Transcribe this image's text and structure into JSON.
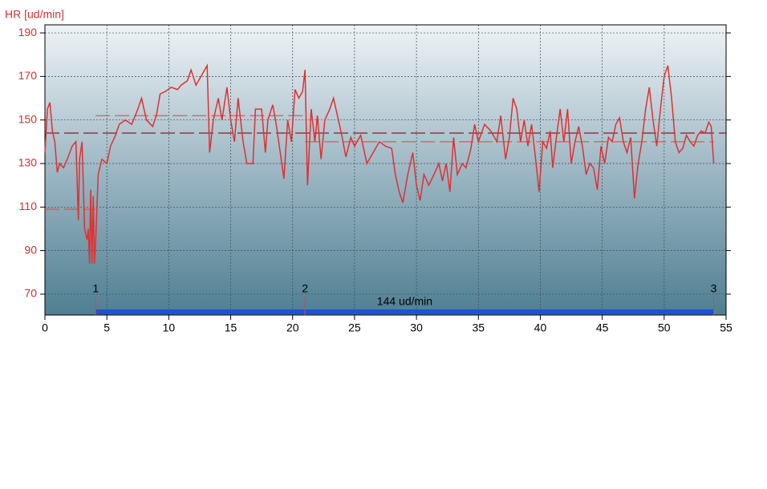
{
  "chart_data": {
    "type": "line",
    "y_label": "HR [ud/min]",
    "x": [
      0,
      0.2,
      0.4,
      0.6,
      0.8,
      1.0,
      1.2,
      1.5,
      1.8,
      2.2,
      2.5,
      2.7,
      2.8,
      3.0,
      3.2,
      3.4,
      3.5,
      3.6,
      3.7,
      3.8,
      3.9,
      4.0,
      4.1,
      4.3,
      4.6,
      5.0,
      5.3,
      5.7,
      6.0,
      6.5,
      7.0,
      7.5,
      7.8,
      8.2,
      8.7,
      9.0,
      9.3,
      9.7,
      10.2,
      10.7,
      11.0,
      11.5,
      11.8,
      12.2,
      12.8,
      13.1,
      13.3,
      13.6,
      14.0,
      14.3,
      14.7,
      15.0,
      15.3,
      15.6,
      16.0,
      16.3,
      16.8,
      17.0,
      17.5,
      17.8,
      18.0,
      18.4,
      18.7,
      19.0,
      19.3,
      19.6,
      19.9,
      20.2,
      20.5,
      20.8,
      21.0,
      21.2,
      21.5,
      21.8,
      22.0,
      22.3,
      22.6,
      23.0,
      23.3,
      23.7,
      24.0,
      24.3,
      24.7,
      25.0,
      25.5,
      26.0,
      26.5,
      27.0,
      27.5,
      28.0,
      28.3,
      28.6,
      28.9,
      29.3,
      29.7,
      30.0,
      30.3,
      30.6,
      31.0,
      31.5,
      31.8,
      32.1,
      32.4,
      32.7,
      33.0,
      33.3,
      33.7,
      34.0,
      34.4,
      34.7,
      35.0,
      35.5,
      36.0,
      36.5,
      36.8,
      37.2,
      37.5,
      37.8,
      38.1,
      38.4,
      38.7,
      39.0,
      39.3,
      39.6,
      39.9,
      40.2,
      40.5,
      40.8,
      41.0,
      41.3,
      41.6,
      41.9,
      42.2,
      42.5,
      42.8,
      43.1,
      43.4,
      43.7,
      44.0,
      44.3,
      44.6,
      44.9,
      45.2,
      45.5,
      45.8,
      46.1,
      46.4,
      46.7,
      47.0,
      47.3,
      47.6,
      47.9,
      48.2,
      48.5,
      48.8,
      49.1,
      49.4,
      49.7,
      50.0,
      50.3,
      50.6,
      50.9,
      51.2,
      51.5,
      51.8,
      52.1,
      52.4,
      52.7,
      53.0,
      53.3,
      53.6,
      53.8,
      54.0
    ],
    "values": [
      135,
      155,
      158,
      145,
      140,
      126,
      130,
      128,
      132,
      138,
      140,
      104,
      132,
      140,
      100,
      95,
      100,
      84,
      118,
      84,
      115,
      84,
      95,
      125,
      132,
      130,
      138,
      143,
      148,
      150,
      148,
      155,
      160,
      150,
      147,
      152,
      162,
      163,
      165,
      164,
      166,
      168,
      173,
      166,
      172,
      175,
      135,
      150,
      160,
      150,
      165,
      150,
      140,
      160,
      140,
      130,
      130,
      155,
      155,
      135,
      150,
      157,
      147,
      135,
      123,
      150,
      140,
      164,
      160,
      163,
      173,
      120,
      155,
      140,
      152,
      132,
      150,
      155,
      160,
      150,
      142,
      133,
      142,
      138,
      143,
      130,
      135,
      140,
      138,
      137,
      125,
      117,
      112,
      125,
      135,
      120,
      113,
      125,
      120,
      126,
      130,
      122,
      130,
      117,
      142,
      125,
      130,
      128,
      137,
      148,
      140,
      148,
      145,
      140,
      152,
      132,
      142,
      160,
      155,
      140,
      150,
      138,
      148,
      133,
      117,
      140,
      137,
      145,
      128,
      142,
      155,
      140,
      155,
      130,
      140,
      147,
      138,
      125,
      130,
      128,
      118,
      138,
      130,
      142,
      140,
      148,
      151,
      140,
      135,
      142,
      114,
      130,
      140,
      155,
      165,
      150,
      138,
      155,
      170,
      175,
      160,
      140,
      135,
      137,
      143,
      140,
      138,
      143,
      145,
      144,
      149,
      147,
      130
    ],
    "color": "#e03030",
    "xlim": [
      0,
      55
    ],
    "xticks": [
      0,
      5,
      10,
      15,
      20,
      25,
      30,
      35,
      40,
      45,
      50,
      55
    ],
    "ylim": [
      60.4,
      193.7
    ],
    "yticks": [
      70,
      90,
      110,
      130,
      150,
      170,
      190
    ],
    "grid": true,
    "average": {
      "value": 144,
      "label": "144 ud/min"
    },
    "laps": [
      {
        "label": "1",
        "x": 4.1
      },
      {
        "label": "2",
        "x": 21
      },
      {
        "label": "3",
        "x": 54
      }
    ],
    "lap_averages": [
      {
        "start": 0,
        "end": 4.1,
        "value": 109
      },
      {
        "start": 4.1,
        "end": 21,
        "value": 152
      },
      {
        "start": 21,
        "end": 54,
        "value": 140
      }
    ]
  }
}
